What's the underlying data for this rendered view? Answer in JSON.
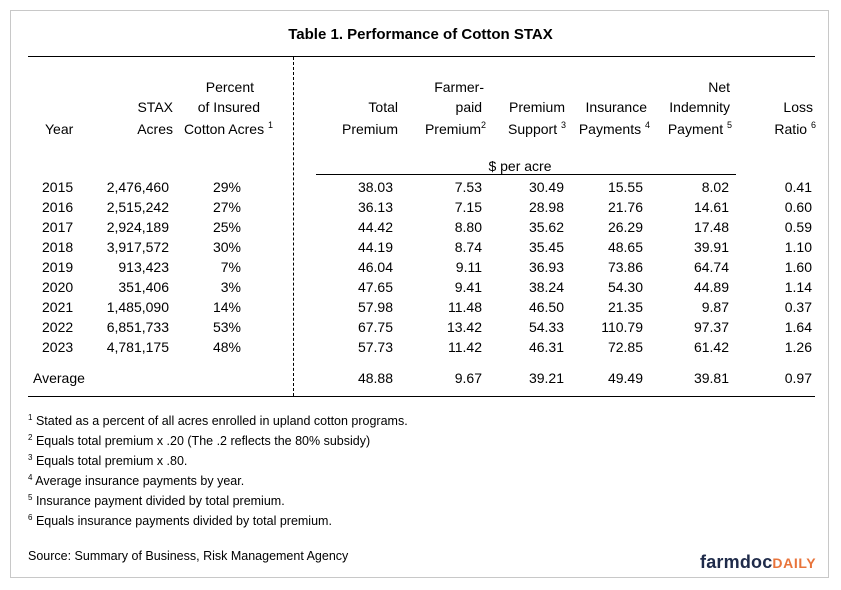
{
  "title": "Table 1.  Performance of Cotton STAX",
  "headers": {
    "year": [
      "Year"
    ],
    "stax_acres": [
      "STAX",
      "Acres"
    ],
    "percent_insured": [
      "Percent",
      "of Insured",
      "Cotton Acres"
    ],
    "percent_insured_note": "1",
    "total_premium": [
      "Total",
      "Premium"
    ],
    "farmer_paid": [
      "Farmer-",
      "paid",
      "Premium"
    ],
    "farmer_paid_note": "2",
    "premium_support": [
      "Premium",
      "Support"
    ],
    "premium_support_note": "3",
    "insurance_payments": [
      "Insurance",
      "Payments"
    ],
    "insurance_payments_note": "4",
    "net_indemnity": [
      "Net",
      "Indemnity",
      "Payment"
    ],
    "net_indemnity_note": "5",
    "loss_ratio": [
      "Loss",
      "Ratio"
    ],
    "loss_ratio_note": "6"
  },
  "unit_label": "$ per acre",
  "rows": [
    [
      "2015",
      "2,476,460",
      "29%",
      "38.03",
      "7.53",
      "30.49",
      "15.55",
      "8.02",
      "0.41"
    ],
    [
      "2016",
      "2,515,242",
      "27%",
      "36.13",
      "7.15",
      "28.98",
      "21.76",
      "14.61",
      "0.60"
    ],
    [
      "2017",
      "2,924,189",
      "25%",
      "44.42",
      "8.80",
      "35.62",
      "26.29",
      "17.48",
      "0.59"
    ],
    [
      "2018",
      "3,917,572",
      "30%",
      "44.19",
      "8.74",
      "35.45",
      "48.65",
      "39.91",
      "1.10"
    ],
    [
      "2019",
      "913,423",
      "7%",
      "46.04",
      "9.11",
      "36.93",
      "73.86",
      "64.74",
      "1.60"
    ],
    [
      "2020",
      "351,406",
      "3%",
      "47.65",
      "9.41",
      "38.24",
      "54.30",
      "44.89",
      "1.14"
    ],
    [
      "2021",
      "1,485,090",
      "14%",
      "57.98",
      "11.48",
      "46.50",
      "21.35",
      "9.87",
      "0.37"
    ],
    [
      "2022",
      "6,851,733",
      "53%",
      "67.75",
      "13.42",
      "54.33",
      "110.79",
      "97.37",
      "1.64"
    ],
    [
      "2023",
      "4,781,175",
      "48%",
      "57.73",
      "11.42",
      "46.31",
      "72.85",
      "61.42",
      "1.26"
    ]
  ],
  "average": [
    "Average",
    "48.88",
    "9.67",
    "39.21",
    "49.49",
    "39.81",
    "0.97"
  ],
  "footnotes": [
    {
      "num": "1",
      "text": "Stated as a percent of all acres enrolled in upland cotton programs."
    },
    {
      "num": "2",
      "text": "Equals total premium x .20 (The .2 reflects the 80% subsidy)"
    },
    {
      "num": "3",
      "text": "Equals total premium x .80."
    },
    {
      "num": "4",
      "text": "Average insurance payments by year."
    },
    {
      "num": "5",
      "text": "Insurance payment divided by total premium."
    },
    {
      "num": "6",
      "text": "Equals insurance payments divided by total premium."
    }
  ],
  "source": "Source:  Summary of Business, Risk Management Agency",
  "logo": {
    "part1": "farmdoc",
    "part2": "DAILY"
  },
  "colors": {
    "logo_dark": "#1f2b4a",
    "logo_accent": "#e8743b"
  }
}
